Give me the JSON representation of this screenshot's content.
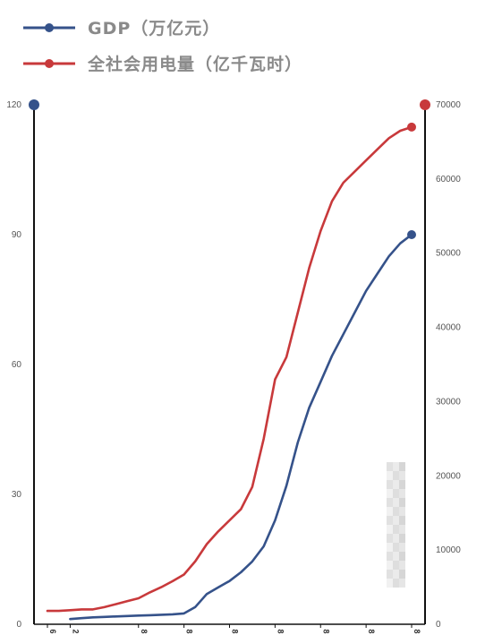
{
  "chart_data": {
    "type": "line",
    "title": "",
    "legend_placement": "top-left",
    "grid": false,
    "series": [
      {
        "name": "GDP（万亿元）",
        "axis": "left",
        "color": "#35528a",
        "x": [
          2,
          3,
          4,
          5,
          6,
          7,
          8,
          9,
          10,
          11,
          12,
          13,
          14,
          15,
          16,
          17,
          18,
          19,
          20,
          21,
          22,
          23,
          24,
          25,
          26,
          27,
          28,
          29,
          30,
          31,
          32
        ],
        "values": [
          1.2,
          1.4,
          1.6,
          1.7,
          1.8,
          1.9,
          2.0,
          2.1,
          2.2,
          2.3,
          2.5,
          4.0,
          7.0,
          8.5,
          10.0,
          12.0,
          14.5,
          18.0,
          24.0,
          32.0,
          42.0,
          50.0,
          56.0,
          62.0,
          67.0,
          72.0,
          77.0,
          81.0,
          85.0,
          88.0,
          90.0
        ]
      },
      {
        "name": "全社会用电量（亿千瓦时）",
        "axis": "right",
        "color": "#c8393b",
        "x": [
          0,
          1,
          2,
          3,
          4,
          5,
          6,
          7,
          8,
          9,
          10,
          11,
          12,
          13,
          14,
          15,
          16,
          17,
          18,
          19,
          20,
          21,
          22,
          23,
          24,
          25,
          26,
          27,
          28,
          29,
          30,
          31,
          32
        ],
        "values": [
          1800,
          1800,
          1900,
          2000,
          2000,
          2300,
          2700,
          3100,
          3500,
          4300,
          5000,
          5800,
          6700,
          8500,
          10800,
          12500,
          14000,
          15500,
          18500,
          25000,
          33000,
          36000,
          42000,
          48000,
          53000,
          57000,
          59500,
          61000,
          62500,
          64000,
          65500,
          66500,
          67000
        ]
      }
    ],
    "y_left": {
      "ylim": [
        0,
        120
      ],
      "ticks": [
        0,
        30,
        60,
        90,
        120
      ]
    },
    "y_right": {
      "ylim": [
        0,
        70000
      ],
      "ticks": [
        0,
        10000,
        20000,
        30000,
        40000,
        50000,
        60000,
        70000
      ]
    },
    "x_ticks": [
      {
        "x": 0,
        "label": "6"
      },
      {
        "x": 2,
        "label": "2"
      },
      {
        "x": 8,
        "label": "8"
      },
      {
        "x": 12,
        "label": "8"
      },
      {
        "x": 16,
        "label": "8"
      },
      {
        "x": 20,
        "label": "8"
      },
      {
        "x": 24,
        "label": "8"
      },
      {
        "x": 28,
        "label": "8"
      },
      {
        "x": 32,
        "label": "8"
      }
    ],
    "xlim": [
      0,
      32
    ]
  }
}
